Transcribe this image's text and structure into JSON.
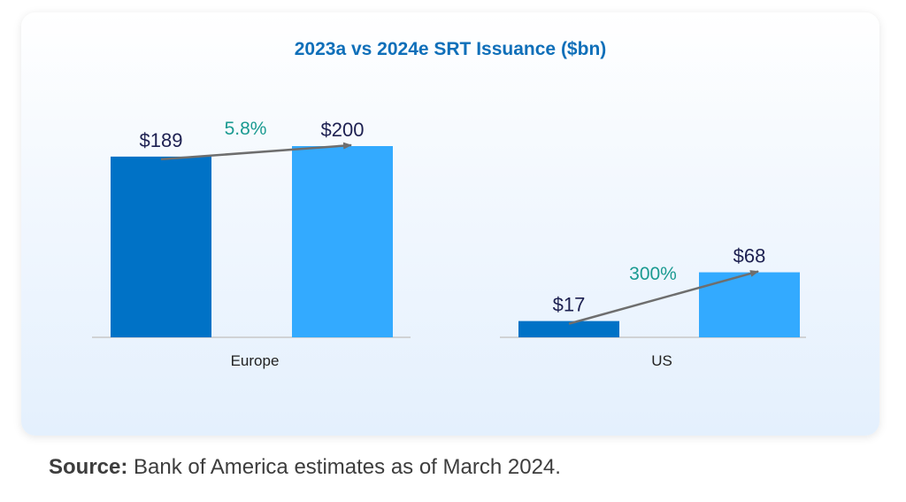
{
  "chart_data": {
    "type": "bar",
    "title": "2023a vs 2024e SRT Issuance ($bn)",
    "categories": [
      "Europe",
      "US"
    ],
    "series": [
      {
        "name": "2023a",
        "values": [
          189,
          17
        ],
        "color": "#0072c6"
      },
      {
        "name": "2024e",
        "values": [
          200,
          68
        ],
        "color": "#33aaff"
      }
    ],
    "value_labels": [
      [
        "$189",
        "$200"
      ],
      [
        "$17",
        "$68"
      ]
    ],
    "growth_labels": [
      "5.8%",
      "300%"
    ],
    "ylim": [
      0,
      200
    ],
    "xlabel": "",
    "ylabel": "",
    "grid": false
  },
  "source": {
    "label": "Source:",
    "text": "Bank of America estimates as of March 2024."
  },
  "colors": {
    "arrow": "#6e6e6e",
    "baseline": "#c8c8c8"
  }
}
